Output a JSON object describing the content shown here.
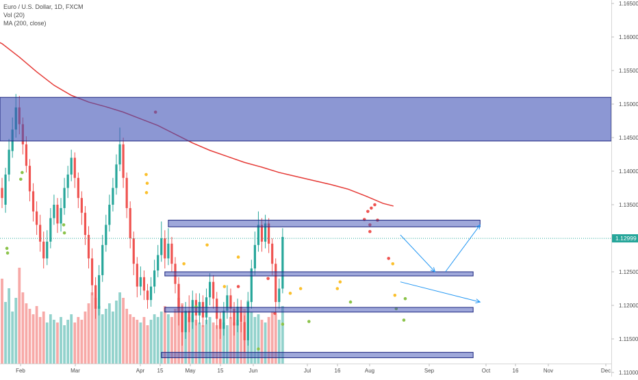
{
  "legend": {
    "symbol": "Euro / U.S. Dollar, 1D, FXCM",
    "volume": "Vol (20)",
    "ma": "MA (200, close)"
  },
  "price_tag": "1.12999",
  "colors": {
    "up": "#26a69a",
    "down": "#ef5350",
    "ma": "#e53935",
    "zone_fill": "#3f51b5",
    "zone_stroke": "#1a237e",
    "arrow": "#2196f3",
    "price_line": "#26a69a",
    "dot_red": "#ef5350",
    "dot_yellow": "#fbc02d",
    "dot_green": "#8bc34a"
  },
  "chart_data": {
    "type": "candlestick",
    "y_axis": {
      "ticks": [
        "1.16500",
        "1.16000",
        "1.15500",
        "1.15000",
        "1.14500",
        "1.14000",
        "1.13500",
        "1.13000",
        "1.12500",
        "1.12000",
        "1.11500",
        "1.11000"
      ],
      "range": [
        1.1064,
        1.1658
      ]
    },
    "x_axis": {
      "ticks": [
        "Feb",
        "Mar",
        "Apr",
        "15",
        "May",
        "15",
        "Jun",
        "Jul",
        "16",
        "Aug",
        "Sep",
        "Oct",
        "16",
        "Nov",
        "Dec"
      ]
    },
    "current_price": 1.12999,
    "moving_average": [
      [
        -2,
        1.1595
      ],
      [
        0,
        1.159
      ],
      [
        5,
        1.157
      ],
      [
        10,
        1.1548
      ],
      [
        15,
        1.1528
      ],
      [
        20,
        1.1513
      ],
      [
        25,
        1.1503
      ],
      [
        30,
        1.1496
      ],
      [
        35,
        1.1488
      ],
      [
        40,
        1.1478
      ],
      [
        45,
        1.1468
      ],
      [
        50,
        1.1455
      ],
      [
        55,
        1.1442
      ],
      [
        60,
        1.1431
      ],
      [
        65,
        1.1422
      ],
      [
        70,
        1.1413
      ],
      [
        75,
        1.1406
      ],
      [
        80,
        1.1398
      ],
      [
        85,
        1.1392
      ],
      [
        90,
        1.1386
      ],
      [
        95,
        1.138
      ],
      [
        100,
        1.1373
      ],
      [
        105,
        1.1363
      ],
      [
        110,
        1.1352
      ],
      [
        113,
        1.1348
      ]
    ],
    "zones": [
      {
        "x1": -5,
        "x2": 250,
        "y1": 1.1445,
        "y2": 1.151
      },
      {
        "x1": 48,
        "x2": 138,
        "y1": 1.1317,
        "y2": 1.1327
      },
      {
        "x1": 47,
        "x2": 136,
        "y1": 1.1245,
        "y2": 1.125
      },
      {
        "x1": 47,
        "x2": 136,
        "y1": 1.119,
        "y2": 1.1197
      },
      {
        "x1": 46,
        "x2": 136,
        "y1": 1.1122,
        "y2": 1.113
      }
    ],
    "arrows": [
      [
        [
          115,
          1.1305
        ],
        [
          125,
          1.125
        ]
      ],
      [
        [
          128,
          1.125
        ],
        [
          138,
          1.132
        ]
      ],
      [
        [
          115,
          1.1235
        ],
        [
          138,
          1.1205
        ]
      ]
    ],
    "candles": [
      [
        1.1375,
        1.136,
        1.139,
        1.1345
      ],
      [
        1.135,
        1.1395,
        1.1405,
        1.1338
      ],
      [
        1.1395,
        1.1432,
        1.1448,
        1.1385
      ],
      [
        1.143,
        1.1462,
        1.148,
        1.142
      ],
      [
        1.1462,
        1.1495,
        1.1515,
        1.145
      ],
      [
        1.1495,
        1.147,
        1.1512,
        1.1455
      ],
      [
        1.147,
        1.144,
        1.148,
        1.1425
      ],
      [
        1.144,
        1.1408,
        1.1452,
        1.1398
      ],
      [
        1.1408,
        1.137,
        1.1418,
        1.1355
      ],
      [
        1.137,
        1.134,
        1.1382,
        1.1325
      ],
      [
        1.134,
        1.132,
        1.1355,
        1.1305
      ],
      [
        1.132,
        1.1295,
        1.1335,
        1.128
      ],
      [
        1.1295,
        1.127,
        1.131,
        1.1255
      ],
      [
        1.127,
        1.1295,
        1.1312,
        1.126
      ],
      [
        1.1295,
        1.133,
        1.1345,
        1.1285
      ],
      [
        1.133,
        1.135,
        1.1365,
        1.132
      ],
      [
        1.135,
        1.1322,
        1.136,
        1.1308
      ],
      [
        1.1322,
        1.1345,
        1.136,
        1.131
      ],
      [
        1.1345,
        1.1375,
        1.139,
        1.1335
      ],
      [
        1.1375,
        1.1395,
        1.1408,
        1.136
      ],
      [
        1.1395,
        1.142,
        1.1432,
        1.1385
      ],
      [
        1.142,
        1.139,
        1.1428,
        1.1375
      ],
      [
        1.139,
        1.136,
        1.1398,
        1.1345
      ],
      [
        1.136,
        1.1338,
        1.137,
        1.132
      ],
      [
        1.1338,
        1.1305,
        1.1348,
        1.129
      ],
      [
        1.1305,
        1.127,
        1.1318,
        1.1255
      ],
      [
        1.127,
        1.123,
        1.1285,
        1.1215
      ],
      [
        1.123,
        1.1195,
        1.1242,
        1.118
      ],
      [
        1.1195,
        1.1245,
        1.126,
        1.1185
      ],
      [
        1.1245,
        1.129,
        1.1305,
        1.1235
      ],
      [
        1.129,
        1.132,
        1.1335,
        1.128
      ],
      [
        1.132,
        1.135,
        1.1365,
        1.131
      ],
      [
        1.135,
        1.1375,
        1.139,
        1.134
      ],
      [
        1.1375,
        1.141,
        1.1425,
        1.1365
      ],
      [
        1.141,
        1.144,
        1.1465,
        1.14
      ],
      [
        1.144,
        1.139,
        1.145,
        1.1375
      ],
      [
        1.139,
        1.1345,
        1.1398,
        1.133
      ],
      [
        1.1345,
        1.13,
        1.1355,
        1.1285
      ],
      [
        1.13,
        1.1262,
        1.131,
        1.1245
      ],
      [
        1.1262,
        1.1228,
        1.1272,
        1.1212
      ],
      [
        1.1228,
        1.1242,
        1.1258,
        1.1215
      ],
      [
        1.1242,
        1.1222,
        1.1252,
        1.1208
      ],
      [
        1.1222,
        1.1208,
        1.1232,
        1.1195
      ],
      [
        1.1208,
        1.1228,
        1.1242,
        1.1198
      ],
      [
        1.1228,
        1.1252,
        1.1268,
        1.1218
      ],
      [
        1.1252,
        1.1275,
        1.129,
        1.1242
      ],
      [
        1.1275,
        1.13,
        1.1325,
        1.1265
      ],
      [
        1.13,
        1.127,
        1.1312,
        1.1255
      ],
      [
        1.127,
        1.1292,
        1.1315,
        1.126
      ],
      [
        1.1292,
        1.1262,
        1.1302,
        1.125
      ],
      [
        1.1262,
        1.1232,
        1.1272,
        1.1218
      ],
      [
        1.1232,
        1.119,
        1.1242,
        1.117
      ],
      [
        1.119,
        1.116,
        1.12,
        1.114
      ],
      [
        1.116,
        1.1192,
        1.1205,
        1.115
      ],
      [
        1.1192,
        1.1175,
        1.1215,
        1.116
      ],
      [
        1.1175,
        1.1208,
        1.1222,
        1.1165
      ],
      [
        1.1208,
        1.1185,
        1.1218,
        1.117
      ],
      [
        1.1185,
        1.1205,
        1.1218,
        1.1172
      ],
      [
        1.1205,
        1.1182,
        1.1215,
        1.1168
      ],
      [
        1.1182,
        1.1212,
        1.1225,
        1.1172
      ],
      [
        1.1212,
        1.1235,
        1.1248,
        1.12
      ],
      [
        1.1235,
        1.121,
        1.1245,
        1.1195
      ],
      [
        1.121,
        1.118,
        1.122,
        1.1165
      ],
      [
        1.118,
        1.1165,
        1.119,
        1.115
      ],
      [
        1.1165,
        1.1192,
        1.1205,
        1.1155
      ],
      [
        1.1192,
        1.1215,
        1.123,
        1.118
      ],
      [
        1.1215,
        1.1195,
        1.1225,
        1.118
      ],
      [
        1.1195,
        1.117,
        1.1205,
        1.1155
      ],
      [
        1.117,
        1.1198,
        1.121,
        1.116
      ],
      [
        1.1198,
        1.1175,
        1.1208,
        1.116
      ],
      [
        1.1175,
        1.1148,
        1.1185,
        1.113
      ],
      [
        1.1148,
        1.1205,
        1.122,
        1.114
      ],
      [
        1.1205,
        1.1255,
        1.1268,
        1.1195
      ],
      [
        1.1255,
        1.129,
        1.131,
        1.1245
      ],
      [
        1.129,
        1.132,
        1.134,
        1.128
      ],
      [
        1.132,
        1.1295,
        1.133,
        1.128
      ],
      [
        1.1295,
        1.1322,
        1.1335,
        1.1285
      ],
      [
        1.1322,
        1.1292,
        1.133,
        1.1278
      ],
      [
        1.1292,
        1.1262,
        1.13,
        1.1245
      ],
      [
        1.1262,
        1.1205,
        1.127,
        1.119
      ],
      [
        1.1205,
        1.1225,
        1.124,
        1.1195
      ],
      [
        1.1225,
        1.1302,
        1.1315,
        1.1218
      ]
    ],
    "volume": [
      62,
      45,
      55,
      38,
      48,
      70,
      52,
      44,
      40,
      36,
      42,
      34,
      38,
      30,
      36,
      32,
      30,
      34,
      28,
      32,
      36,
      30,
      34,
      32,
      38,
      44,
      52,
      48,
      42,
      36,
      40,
      44,
      38,
      46,
      52,
      48,
      40,
      36,
      34,
      32,
      30,
      34,
      28,
      32,
      36,
      34,
      38,
      42,
      36,
      34,
      40,
      48,
      44,
      38,
      34,
      36,
      32,
      30,
      28,
      32,
      34,
      30,
      28,
      32,
      30,
      28,
      34,
      30,
      32,
      30,
      40,
      46,
      38,
      34,
      36,
      32,
      30,
      34,
      38,
      36,
      32,
      42
    ],
    "dots": [
      {
        "c": "red",
        "x": 44.3,
        "y": 1.1488
      },
      {
        "c": "red",
        "x": 104.6,
        "y": 1.1328
      },
      {
        "c": "red",
        "x": 105.6,
        "y": 1.134
      },
      {
        "c": "red",
        "x": 106.6,
        "y": 1.1345
      },
      {
        "c": "red",
        "x": 107.6,
        "y": 1.135
      },
      {
        "c": "red",
        "x": 106.2,
        "y": 1.132
      },
      {
        "c": "red",
        "x": 106.2,
        "y": 1.131
      },
      {
        "c": "red",
        "x": 108.4,
        "y": 1.1327
      },
      {
        "c": "red",
        "x": 111.6,
        "y": 1.127
      },
      {
        "c": "red",
        "x": 76.8,
        "y": 1.124
      },
      {
        "c": "red",
        "x": 78.8,
        "y": 1.1188
      },
      {
        "c": "red",
        "x": 68.2,
        "y": 1.1228
      },
      {
        "c": "yellow",
        "x": 41.6,
        "y": 1.1395
      },
      {
        "c": "yellow",
        "x": 41.9,
        "y": 1.1382
      },
      {
        "c": "yellow",
        "x": 41.7,
        "y": 1.1368
      },
      {
        "c": "yellow",
        "x": 52.5,
        "y": 1.1262
      },
      {
        "c": "yellow",
        "x": 59.2,
        "y": 1.129
      },
      {
        "c": "yellow",
        "x": 68.2,
        "y": 1.1272
      },
      {
        "c": "yellow",
        "x": 96.8,
        "y": 1.1225
      },
      {
        "c": "yellow",
        "x": 97.6,
        "y": 1.1235
      },
      {
        "c": "yellow",
        "x": 112.8,
        "y": 1.1262
      },
      {
        "c": "yellow",
        "x": 113.4,
        "y": 1.1215
      },
      {
        "c": "yellow",
        "x": 64.2,
        "y": 1.1228
      },
      {
        "c": "yellow",
        "x": 83.2,
        "y": 1.1218
      },
      {
        "c": "yellow",
        "x": 86.2,
        "y": 1.1225
      },
      {
        "c": "green",
        "x": 1.4,
        "y": 1.1285
      },
      {
        "c": "green",
        "x": 1.6,
        "y": 1.1278
      },
      {
        "c": "green",
        "x": 5.8,
        "y": 1.1398
      },
      {
        "c": "green",
        "x": 5.4,
        "y": 1.1388
      },
      {
        "c": "green",
        "x": 18.0,
        "y": 1.1308
      },
      {
        "c": "green",
        "x": 17.8,
        "y": 1.132
      },
      {
        "c": "green",
        "x": 56.0,
        "y": 1.1198
      },
      {
        "c": "green",
        "x": 81.0,
        "y": 1.1172
      },
      {
        "c": "green",
        "x": 100.6,
        "y": 1.1205
      },
      {
        "c": "green",
        "x": 113.8,
        "y": 1.1195
      },
      {
        "c": "green",
        "x": 116.4,
        "y": 1.121
      },
      {
        "c": "green",
        "x": 116.0,
        "y": 1.1178
      },
      {
        "c": "green",
        "x": 88.6,
        "y": 1.1176
      },
      {
        "c": "green",
        "x": 74.0,
        "y": 1.1135
      }
    ]
  }
}
